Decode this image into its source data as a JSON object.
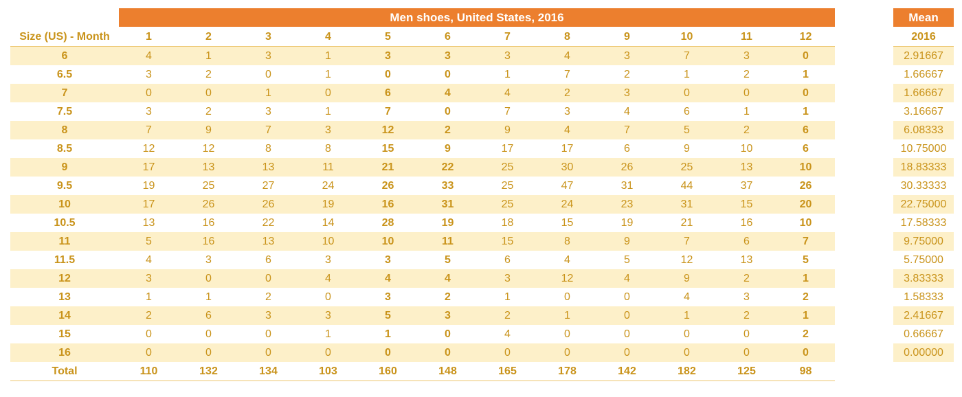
{
  "title": "Men shoes, United States, 2016",
  "row_header_label": "Size (US) - Month",
  "months": [
    "1",
    "2",
    "3",
    "4",
    "5",
    "6",
    "7",
    "8",
    "9",
    "10",
    "11",
    "12"
  ],
  "rows": [
    {
      "size": "6",
      "values": [
        "4",
        "1",
        "3",
        "1",
        "3",
        "3",
        "3",
        "4",
        "3",
        "7",
        "3",
        "0"
      ]
    },
    {
      "size": "6.5",
      "values": [
        "3",
        "2",
        "0",
        "1",
        "0",
        "0",
        "1",
        "7",
        "2",
        "1",
        "2",
        "1"
      ]
    },
    {
      "size": "7",
      "values": [
        "0",
        "0",
        "1",
        "0",
        "6",
        "4",
        "4",
        "2",
        "3",
        "0",
        "0",
        "0"
      ]
    },
    {
      "size": "7.5",
      "values": [
        "3",
        "2",
        "3",
        "1",
        "7",
        "0",
        "7",
        "3",
        "4",
        "6",
        "1",
        "1"
      ]
    },
    {
      "size": "8",
      "values": [
        "7",
        "9",
        "7",
        "3",
        "12",
        "2",
        "9",
        "4",
        "7",
        "5",
        "2",
        "6"
      ]
    },
    {
      "size": "8.5",
      "values": [
        "12",
        "12",
        "8",
        "8",
        "15",
        "9",
        "17",
        "17",
        "6",
        "9",
        "10",
        "6"
      ]
    },
    {
      "size": "9",
      "values": [
        "17",
        "13",
        "13",
        "11",
        "21",
        "22",
        "25",
        "30",
        "26",
        "25",
        "13",
        "10"
      ]
    },
    {
      "size": "9.5",
      "values": [
        "19",
        "25",
        "27",
        "24",
        "26",
        "33",
        "25",
        "47",
        "31",
        "44",
        "37",
        "26"
      ]
    },
    {
      "size": "10",
      "values": [
        "17",
        "26",
        "26",
        "19",
        "16",
        "31",
        "25",
        "24",
        "23",
        "31",
        "15",
        "20"
      ]
    },
    {
      "size": "10.5",
      "values": [
        "13",
        "16",
        "22",
        "14",
        "28",
        "19",
        "18",
        "15",
        "19",
        "21",
        "16",
        "10"
      ]
    },
    {
      "size": "11",
      "values": [
        "5",
        "16",
        "13",
        "10",
        "10",
        "11",
        "15",
        "8",
        "9",
        "7",
        "6",
        "7"
      ]
    },
    {
      "size": "11.5",
      "values": [
        "4",
        "3",
        "6",
        "3",
        "3",
        "5",
        "6",
        "4",
        "5",
        "12",
        "13",
        "5"
      ]
    },
    {
      "size": "12",
      "values": [
        "3",
        "0",
        "0",
        "4",
        "4",
        "4",
        "3",
        "12",
        "4",
        "9",
        "2",
        "1"
      ]
    },
    {
      "size": "13",
      "values": [
        "1",
        "1",
        "2",
        "0",
        "3",
        "2",
        "1",
        "0",
        "0",
        "4",
        "3",
        "2"
      ]
    },
    {
      "size": "14",
      "values": [
        "2",
        "6",
        "3",
        "3",
        "5",
        "3",
        "2",
        "1",
        "0",
        "1",
        "2",
        "1"
      ]
    },
    {
      "size": "15",
      "values": [
        "0",
        "0",
        "0",
        "1",
        "1",
        "0",
        "4",
        "0",
        "0",
        "0",
        "0",
        "2"
      ]
    },
    {
      "size": "16",
      "values": [
        "0",
        "0",
        "0",
        "0",
        "0",
        "0",
        "0",
        "0",
        "0",
        "0",
        "0",
        "0"
      ]
    }
  ],
  "total": {
    "label": "Total",
    "values": [
      "110",
      "132",
      "134",
      "103",
      "160",
      "148",
      "165",
      "178",
      "142",
      "182",
      "125",
      "98"
    ]
  },
  "mean": {
    "title": "Mean",
    "year": "2016",
    "values": [
      "2.91667",
      "1.66667",
      "1.66667",
      "3.16667",
      "6.08333",
      "10.75000",
      "18.83333",
      "30.33333",
      "22.75000",
      "17.58333",
      "9.75000",
      "5.75000",
      "3.83333",
      "1.58333",
      "2.41667",
      "0.66667",
      "0.00000"
    ]
  },
  "colors": {
    "header_fill": "#ec7f2e",
    "text": "#c9931a",
    "band_fill": "#fdf0c9",
    "rule": "#ecc46b"
  }
}
